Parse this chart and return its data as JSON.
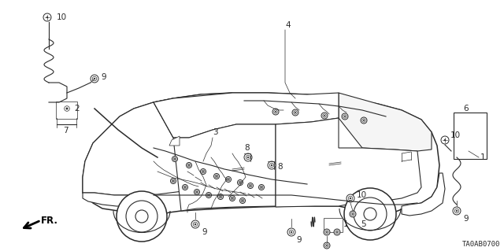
{
  "bg_color": "#ffffff",
  "line_color": "#2a2a2a",
  "fig_width": 6.4,
  "fig_height": 3.19,
  "dpi": 100,
  "diagram_id_text": "TA0AB0700",
  "fr_label": "FR."
}
